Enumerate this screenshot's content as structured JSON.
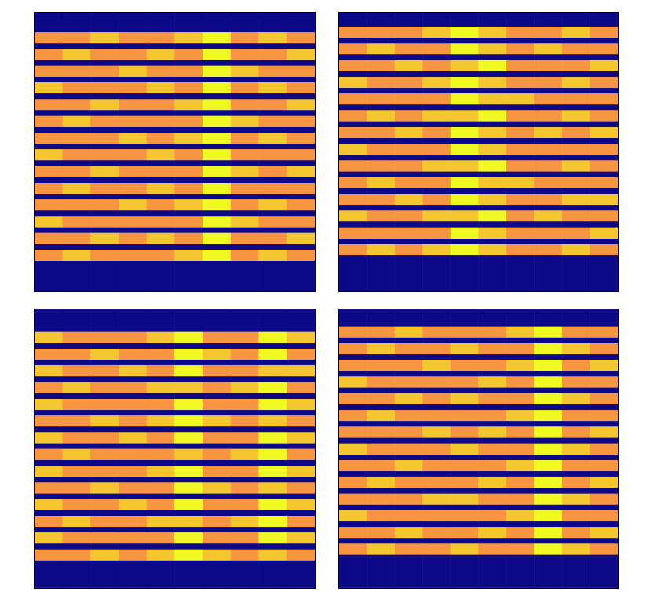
{
  "chart_data": [
    {
      "type": "heatmap",
      "ylim": [
        0,
        100
      ],
      "zlim": [
        0,
        8
      ],
      "grid": false,
      "tick_labels": false,
      "y_edges": [
        100,
        93,
        89,
        87,
        83,
        81,
        77,
        75,
        71,
        69,
        65,
        63,
        59,
        57,
        53,
        51,
        47,
        45,
        41,
        39,
        35,
        33,
        29,
        27,
        23,
        21,
        17,
        15,
        11,
        0
      ],
      "cells": [
        [
          0,
          0,
          0,
          0,
          0,
          0,
          0,
          0,
          0,
          0
        ],
        [
          6,
          6,
          7,
          6,
          6,
          7,
          8,
          6,
          7,
          6
        ],
        [
          0,
          0,
          0,
          0,
          0,
          0,
          0,
          0,
          0,
          0
        ],
        [
          6,
          7,
          6,
          6,
          7,
          6,
          8,
          6,
          6,
          7
        ],
        [
          0,
          0,
          0,
          0,
          0,
          0,
          0,
          0,
          0,
          0
        ],
        [
          6,
          6,
          6,
          7,
          6,
          6,
          8,
          7,
          6,
          6
        ],
        [
          0,
          0,
          0,
          0,
          0,
          0,
          0,
          0,
          0,
          0
        ],
        [
          7,
          6,
          6,
          6,
          7,
          6,
          8,
          6,
          7,
          6
        ],
        [
          0,
          0,
          0,
          0,
          0,
          0,
          0,
          0,
          0,
          0
        ],
        [
          6,
          6,
          7,
          6,
          6,
          7,
          8,
          6,
          6,
          7
        ],
        [
          0,
          0,
          0,
          0,
          0,
          0,
          0,
          0,
          0,
          0
        ],
        [
          6,
          7,
          6,
          6,
          6,
          6,
          8,
          7,
          6,
          6
        ],
        [
          0,
          0,
          0,
          0,
          0,
          0,
          0,
          0,
          0,
          0
        ],
        [
          6,
          6,
          6,
          7,
          6,
          7,
          8,
          6,
          7,
          6
        ],
        [
          0,
          0,
          0,
          0,
          0,
          0,
          0,
          0,
          0,
          0
        ],
        [
          7,
          6,
          6,
          6,
          7,
          6,
          8,
          6,
          6,
          6
        ],
        [
          0,
          0,
          0,
          0,
          0,
          0,
          0,
          0,
          0,
          0
        ],
        [
          6,
          6,
          7,
          6,
          6,
          6,
          8,
          7,
          6,
          7
        ],
        [
          0,
          0,
          0,
          0,
          0,
          0,
          0,
          0,
          0,
          0
        ],
        [
          6,
          7,
          6,
          6,
          7,
          6,
          8,
          6,
          6,
          6
        ],
        [
          0,
          0,
          0,
          0,
          0,
          0,
          0,
          0,
          0,
          0
        ],
        [
          6,
          6,
          6,
          7,
          6,
          7,
          8,
          6,
          7,
          6
        ],
        [
          0,
          0,
          0,
          0,
          0,
          0,
          0,
          0,
          0,
          0
        ],
        [
          7,
          6,
          6,
          6,
          6,
          6,
          8,
          7,
          6,
          6
        ],
        [
          0,
          0,
          0,
          0,
          0,
          0,
          0,
          0,
          0,
          0
        ],
        [
          6,
          6,
          7,
          6,
          7,
          6,
          8,
          6,
          6,
          7
        ],
        [
          0,
          0,
          0,
          0,
          0,
          0,
          0,
          0,
          0,
          0
        ],
        [
          6,
          7,
          6,
          6,
          6,
          7,
          8,
          6,
          7,
          6
        ],
        [
          0,
          0,
          0,
          0,
          0,
          0,
          0,
          0,
          0,
          0
        ]
      ]
    },
    {
      "type": "heatmap",
      "ylim": [
        0,
        100
      ],
      "zlim": [
        0,
        8
      ],
      "grid": false,
      "tick_labels": false,
      "y_edges": [
        100,
        95,
        91,
        89,
        85,
        83,
        79,
        77,
        73,
        71,
        67,
        65,
        61,
        59,
        55,
        53,
        49,
        47,
        43,
        41,
        37,
        35,
        31,
        29,
        25,
        23,
        19,
        17,
        13,
        0
      ],
      "cells": [
        [
          0,
          0,
          0,
          0,
          0,
          0,
          0,
          0,
          0,
          0
        ],
        [
          6,
          6,
          6,
          7,
          8,
          7,
          6,
          6,
          7,
          6
        ],
        [
          0,
          0,
          0,
          0,
          0,
          0,
          0,
          0,
          0,
          0
        ],
        [
          6,
          7,
          6,
          6,
          8,
          7,
          6,
          7,
          6,
          6
        ],
        [
          0,
          0,
          0,
          0,
          0,
          0,
          0,
          0,
          0,
          0
        ],
        [
          6,
          6,
          7,
          6,
          7,
          8,
          6,
          6,
          6,
          7
        ],
        [
          0,
          0,
          0,
          0,
          0,
          0,
          0,
          0,
          0,
          0
        ],
        [
          7,
          6,
          6,
          7,
          8,
          7,
          6,
          6,
          7,
          6
        ],
        [
          0,
          0,
          0,
          0,
          0,
          0,
          0,
          0,
          0,
          0
        ],
        [
          6,
          6,
          6,
          6,
          8,
          7,
          7,
          6,
          6,
          6
        ],
        [
          0,
          0,
          0,
          0,
          0,
          0,
          0,
          0,
          0,
          0
        ],
        [
          6,
          7,
          6,
          7,
          7,
          8,
          6,
          6,
          7,
          6
        ],
        [
          0,
          0,
          0,
          0,
          0,
          0,
          0,
          0,
          0,
          0
        ],
        [
          6,
          6,
          7,
          6,
          8,
          7,
          6,
          7,
          6,
          7
        ],
        [
          0,
          0,
          0,
          0,
          0,
          0,
          0,
          0,
          0,
          0
        ],
        [
          7,
          6,
          6,
          6,
          8,
          7,
          6,
          6,
          6,
          6
        ],
        [
          0,
          0,
          0,
          0,
          0,
          0,
          0,
          0,
          0,
          0
        ],
        [
          6,
          6,
          6,
          7,
          7,
          8,
          6,
          6,
          7,
          6
        ],
        [
          0,
          0,
          0,
          0,
          0,
          0,
          0,
          0,
          0,
          0
        ],
        [
          6,
          7,
          6,
          6,
          8,
          7,
          7,
          6,
          6,
          6
        ],
        [
          0,
          0,
          0,
          0,
          0,
          0,
          0,
          0,
          0,
          0
        ],
        [
          6,
          6,
          7,
          6,
          8,
          7,
          6,
          6,
          7,
          7
        ],
        [
          0,
          0,
          0,
          0,
          0,
          0,
          0,
          0,
          0,
          0
        ],
        [
          7,
          6,
          6,
          7,
          7,
          8,
          6,
          7,
          6,
          6
        ],
        [
          0,
          0,
          0,
          0,
          0,
          0,
          0,
          0,
          0,
          0
        ],
        [
          6,
          6,
          6,
          6,
          8,
          7,
          6,
          6,
          6,
          7
        ],
        [
          0,
          0,
          0,
          0,
          0,
          0,
          0,
          0,
          0,
          0
        ],
        [
          6,
          7,
          6,
          7,
          8,
          7,
          6,
          6,
          7,
          6
        ],
        [
          0,
          0,
          0,
          0,
          0,
          0,
          0,
          0,
          0,
          0
        ]
      ]
    },
    {
      "type": "heatmap",
      "ylim": [
        0,
        100
      ],
      "zlim": [
        0,
        8
      ],
      "grid": false,
      "tick_labels": false,
      "y_edges": [
        100,
        92,
        88,
        86,
        82,
        80,
        76,
        74,
        70,
        68,
        64,
        62,
        58,
        56,
        52,
        50,
        46,
        44,
        40,
        38,
        34,
        32,
        28,
        26,
        22,
        20,
        16,
        14,
        10,
        0
      ],
      "cells": [
        [
          0,
          0,
          0,
          0,
          0,
          0,
          0,
          0,
          0,
          0
        ],
        [
          7,
          6,
          6,
          6,
          7,
          8,
          6,
          6,
          8,
          7
        ],
        [
          0,
          0,
          0,
          0,
          0,
          0,
          0,
          0,
          0,
          0
        ],
        [
          6,
          6,
          7,
          6,
          6,
          8,
          7,
          6,
          8,
          6
        ],
        [
          0,
          0,
          0,
          0,
          0,
          0,
          0,
          0,
          0,
          0
        ],
        [
          7,
          6,
          6,
          7,
          6,
          8,
          6,
          6,
          7,
          7
        ],
        [
          0,
          0,
          0,
          0,
          0,
          0,
          0,
          0,
          0,
          0
        ],
        [
          6,
          7,
          6,
          6,
          7,
          7,
          6,
          7,
          8,
          6
        ],
        [
          0,
          0,
          0,
          0,
          0,
          0,
          0,
          0,
          0,
          0
        ],
        [
          7,
          6,
          6,
          6,
          6,
          8,
          6,
          6,
          8,
          7
        ],
        [
          0,
          0,
          0,
          0,
          0,
          0,
          0,
          0,
          0,
          0
        ],
        [
          6,
          6,
          7,
          6,
          7,
          8,
          7,
          6,
          7,
          6
        ],
        [
          0,
          0,
          0,
          0,
          0,
          0,
          0,
          0,
          0,
          0
        ],
        [
          7,
          6,
          6,
          7,
          6,
          8,
          6,
          6,
          8,
          7
        ],
        [
          0,
          0,
          0,
          0,
          0,
          0,
          0,
          0,
          0,
          0
        ],
        [
          6,
          7,
          6,
          6,
          6,
          7,
          6,
          7,
          8,
          6
        ],
        [
          0,
          0,
          0,
          0,
          0,
          0,
          0,
          0,
          0,
          0
        ],
        [
          7,
          6,
          6,
          6,
          7,
          8,
          6,
          6,
          8,
          7
        ],
        [
          0,
          0,
          0,
          0,
          0,
          0,
          0,
          0,
          0,
          0
        ],
        [
          6,
          6,
          7,
          6,
          6,
          8,
          7,
          6,
          7,
          6
        ],
        [
          0,
          0,
          0,
          0,
          0,
          0,
          0,
          0,
          0,
          0
        ],
        [
          7,
          6,
          6,
          7,
          6,
          8,
          6,
          6,
          8,
          7
        ],
        [
          0,
          0,
          0,
          0,
          0,
          0,
          0,
          0,
          0,
          0
        ],
        [
          6,
          7,
          6,
          6,
          7,
          7,
          6,
          7,
          8,
          6
        ],
        [
          0,
          0,
          0,
          0,
          0,
          0,
          0,
          0,
          0,
          0
        ],
        [
          7,
          6,
          6,
          6,
          6,
          8,
          6,
          6,
          8,
          7
        ],
        [
          0,
          0,
          0,
          0,
          0,
          0,
          0,
          0,
          0,
          0
        ],
        [
          6,
          6,
          7,
          6,
          7,
          8,
          7,
          6,
          7,
          6
        ],
        [
          0,
          0,
          0,
          0,
          0,
          0,
          0,
          0,
          0,
          0
        ]
      ]
    },
    {
      "type": "heatmap",
      "ylim": [
        0,
        100
      ],
      "zlim": [
        0,
        8
      ],
      "grid": false,
      "tick_labels": false,
      "y_edges": [
        100,
        94,
        90,
        88,
        84,
        82,
        78,
        76,
        72,
        70,
        66,
        64,
        60,
        58,
        54,
        52,
        48,
        46,
        42,
        40,
        36,
        34,
        30,
        28,
        24,
        22,
        18,
        16,
        12,
        0
      ],
      "cells": [
        [
          0,
          0,
          0,
          0,
          0,
          0,
          0,
          0,
          0,
          0
        ],
        [
          6,
          6,
          7,
          6,
          6,
          6,
          7,
          8,
          6,
          6
        ],
        [
          0,
          0,
          0,
          0,
          0,
          0,
          0,
          0,
          0,
          0
        ],
        [
          6,
          7,
          6,
          6,
          7,
          6,
          6,
          8,
          7,
          6
        ],
        [
          0,
          0,
          0,
          0,
          0,
          0,
          0,
          0,
          0,
          0
        ],
        [
          6,
          6,
          6,
          7,
          6,
          6,
          7,
          8,
          6,
          7
        ],
        [
          0,
          0,
          0,
          0,
          0,
          0,
          0,
          0,
          0,
          0
        ],
        [
          7,
          6,
          6,
          6,
          6,
          7,
          6,
          8,
          6,
          6
        ],
        [
          0,
          0,
          0,
          0,
          0,
          0,
          0,
          0,
          0,
          0
        ],
        [
          6,
          6,
          7,
          6,
          7,
          6,
          6,
          8,
          7,
          6
        ],
        [
          0,
          0,
          0,
          0,
          0,
          0,
          0,
          0,
          0,
          0
        ],
        [
          6,
          7,
          6,
          6,
          6,
          6,
          7,
          8,
          6,
          6
        ],
        [
          0,
          0,
          0,
          0,
          0,
          0,
          0,
          0,
          0,
          0
        ],
        [
          6,
          6,
          6,
          7,
          6,
          7,
          6,
          8,
          6,
          7
        ],
        [
          0,
          0,
          0,
          0,
          0,
          0,
          0,
          0,
          0,
          0
        ],
        [
          7,
          6,
          6,
          6,
          7,
          6,
          6,
          8,
          7,
          6
        ],
        [
          0,
          0,
          0,
          0,
          0,
          0,
          0,
          0,
          0,
          0
        ],
        [
          6,
          6,
          7,
          6,
          6,
          6,
          7,
          8,
          6,
          6
        ],
        [
          0,
          0,
          0,
          0,
          0,
          0,
          0,
          0,
          0,
          0
        ],
        [
          6,
          7,
          6,
          6,
          6,
          7,
          6,
          8,
          6,
          7
        ],
        [
          0,
          0,
          0,
          0,
          0,
          0,
          0,
          0,
          0,
          0
        ],
        [
          6,
          6,
          6,
          7,
          7,
          6,
          6,
          8,
          7,
          6
        ],
        [
          0,
          0,
          0,
          0,
          0,
          0,
          0,
          0,
          0,
          0
        ],
        [
          7,
          6,
          6,
          6,
          6,
          6,
          7,
          8,
          6,
          6
        ],
        [
          0,
          0,
          0,
          0,
          0,
          0,
          0,
          0,
          0,
          0
        ],
        [
          6,
          6,
          7,
          6,
          6,
          7,
          6,
          8,
          6,
          7
        ],
        [
          0,
          0,
          0,
          0,
          0,
          0,
          0,
          0,
          0,
          0
        ],
        [
          6,
          7,
          6,
          6,
          7,
          6,
          6,
          8,
          7,
          6
        ],
        [
          0,
          0,
          0,
          0,
          0,
          0,
          0,
          0,
          0,
          0
        ]
      ]
    }
  ]
}
